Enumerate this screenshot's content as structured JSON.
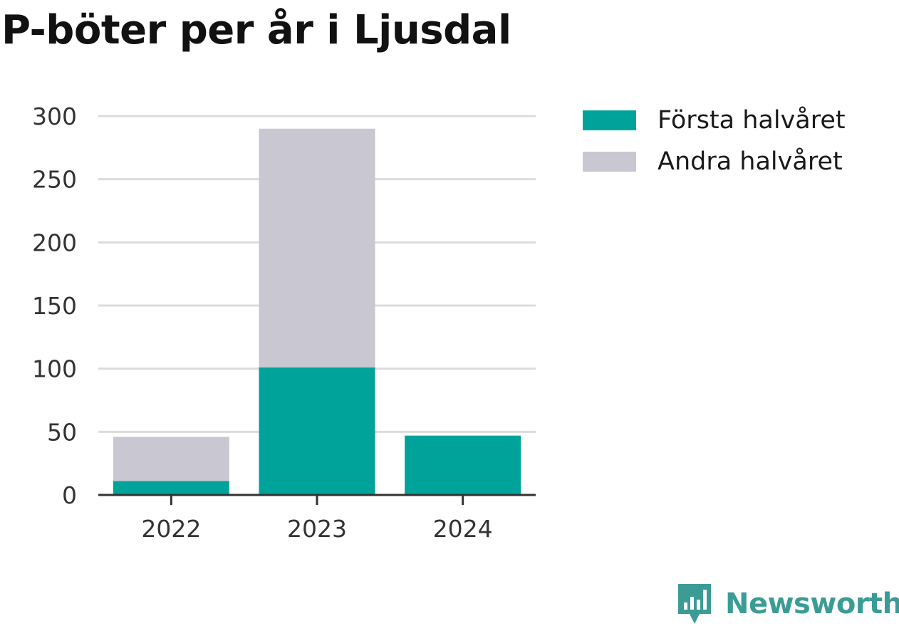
{
  "title": "P-böter per år i Ljusdal",
  "chart_data": {
    "type": "bar",
    "stacked": true,
    "title": "P-böter per år i Ljusdal",
    "categories": [
      "2022",
      "2023",
      "2024"
    ],
    "series": [
      {
        "name": "Första halvåret",
        "values": [
          11,
          101,
          47
        ],
        "color": "#00a39a"
      },
      {
        "name": "Andra halvåret",
        "values": [
          35,
          189,
          0
        ],
        "color": "#c8c7d2"
      }
    ],
    "yticks": [
      0,
      50,
      100,
      150,
      200,
      250,
      300
    ],
    "ylim": [
      0,
      300
    ],
    "xlabel": "",
    "ylabel": "",
    "grid": true,
    "legend_position": "right"
  },
  "logo": {
    "name": "Newsworthy",
    "icon": "newsworthy-logo-icon",
    "color": "#3b9c96"
  }
}
